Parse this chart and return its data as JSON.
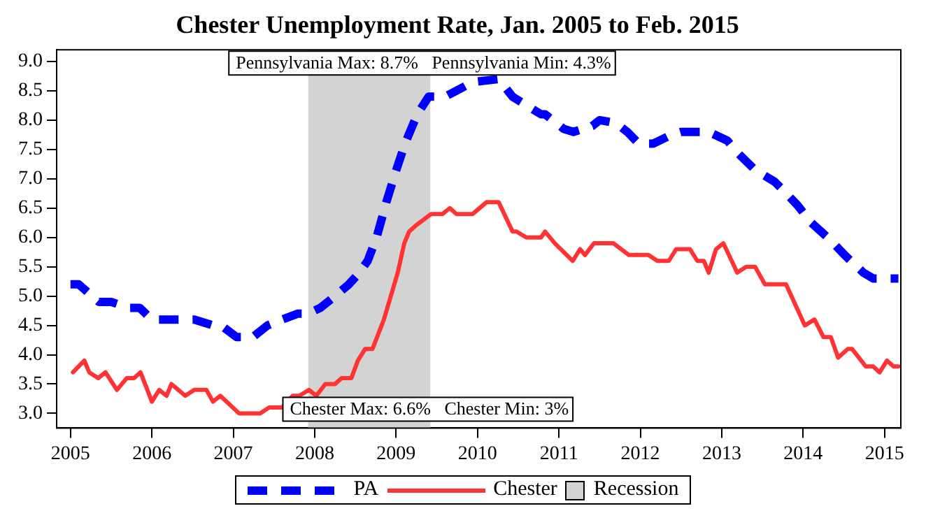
{
  "chart_data": {
    "type": "line",
    "title": "Chester Unemployment Rate, Jan. 2005 to Feb. 2015",
    "xlim": [
      2004.83,
      2015.2
    ],
    "xticks": [
      2005,
      2006,
      2007,
      2008,
      2009,
      2010,
      2011,
      2012,
      2013,
      2014,
      2015
    ],
    "ylim": [
      2.75,
      9.2
    ],
    "yticks": [
      {
        "value": 3,
        "label": "3.0"
      },
      {
        "value": 3.5,
        "label": "3.5"
      },
      {
        "value": 4,
        "label": "4.0"
      },
      {
        "value": 4.5,
        "label": "4.5"
      },
      {
        "value": 5,
        "label": "5.0"
      },
      {
        "value": 5.5,
        "label": "5.5"
      },
      {
        "value": 6,
        "label": "6.0"
      },
      {
        "value": 6.5,
        "label": "6.5"
      },
      {
        "value": 7,
        "label": "7.0"
      },
      {
        "value": 7.5,
        "label": "7.5"
      },
      {
        "value": 8,
        "label": "8.0"
      },
      {
        "value": 8.5,
        "label": "8.5"
      },
      {
        "value": 9,
        "label": "9.0"
      }
    ],
    "grid": false,
    "legend": "bottom",
    "marker": "none",
    "series": [
      {
        "name": "PA",
        "color": "#0000ff",
        "line_style": "dashed",
        "x": [
          2005.0,
          2005.1,
          2005.35,
          2005.5,
          2005.72,
          2005.85,
          2006.0,
          2006.25,
          2006.52,
          2006.75,
          2006.85,
          2007.04,
          2007.24,
          2007.42,
          2007.6,
          2007.79,
          2007.92,
          2008.07,
          2008.25,
          2008.42,
          2008.55,
          2008.65,
          2008.76,
          2008.88,
          2008.99,
          2009.11,
          2009.26,
          2009.4,
          2009.6,
          2009.74,
          2009.94,
          2010.26,
          2010.43,
          2010.78,
          2010.83,
          2011.06,
          2011.18,
          2011.41,
          2011.5,
          2011.7,
          2011.84,
          2011.98,
          2012.16,
          2012.38,
          2012.5,
          2012.84,
          2013.07,
          2013.19,
          2013.41,
          2013.65,
          2013.76,
          2013.93,
          2014.1,
          2014.34,
          2014.51,
          2014.74,
          2014.86,
          2015.17
        ],
        "values": [
          5.2,
          5.2,
          4.9,
          4.9,
          4.8,
          4.8,
          4.6,
          4.6,
          4.6,
          4.5,
          4.5,
          4.3,
          4.3,
          4.5,
          4.6,
          4.7,
          4.7,
          4.8,
          5.0,
          5.2,
          5.4,
          5.6,
          6.0,
          6.6,
          7.1,
          7.6,
          8.1,
          8.4,
          8.4,
          8.5,
          8.65,
          8.7,
          8.4,
          8.1,
          8.1,
          7.85,
          7.8,
          7.9,
          8.0,
          7.95,
          7.8,
          7.6,
          7.6,
          7.75,
          7.8,
          7.8,
          7.65,
          7.45,
          7.15,
          6.95,
          6.8,
          6.55,
          6.25,
          5.95,
          5.7,
          5.4,
          5.3,
          5.3
        ]
      },
      {
        "name": "Chester",
        "color": "#ff3333",
        "line_style": "solid",
        "x": [
          2005.03,
          2005.17,
          2005.23,
          2005.34,
          2005.43,
          2005.57,
          2005.69,
          2005.78,
          2005.86,
          2006.0,
          2006.09,
          2006.18,
          2006.24,
          2006.41,
          2006.52,
          2006.67,
          2006.75,
          2006.84,
          2007.07,
          2007.33,
          2007.44,
          2007.6,
          2007.73,
          2007.81,
          2007.93,
          2008.02,
          2008.13,
          2008.25,
          2008.33,
          2008.45,
          2008.53,
          2008.62,
          2008.71,
          2008.85,
          2009.02,
          2009.1,
          2009.16,
          2009.24,
          2009.43,
          2009.57,
          2009.66,
          2009.74,
          2009.94,
          2010.11,
          2010.26,
          2010.43,
          2010.48,
          2010.6,
          2010.78,
          2010.83,
          2010.95,
          2011.17,
          2011.26,
          2011.32,
          2011.43,
          2011.67,
          2011.86,
          2012.1,
          2012.21,
          2012.35,
          2012.44,
          2012.61,
          2012.7,
          2012.78,
          2012.84,
          2012.93,
          2013.02,
          2013.19,
          2013.3,
          2013.41,
          2013.53,
          2013.79,
          2014.02,
          2014.14,
          2014.25,
          2014.34,
          2014.43,
          2014.55,
          2014.6,
          2014.77,
          2014.86,
          2014.94,
          2015.03,
          2015.11,
          2015.17
        ],
        "values": [
          3.7,
          3.9,
          3.7,
          3.6,
          3.7,
          3.4,
          3.6,
          3.6,
          3.7,
          3.2,
          3.4,
          3.3,
          3.5,
          3.3,
          3.4,
          3.4,
          3.2,
          3.3,
          3.0,
          3.0,
          3.1,
          3.1,
          3.3,
          3.3,
          3.4,
          3.3,
          3.5,
          3.5,
          3.6,
          3.6,
          3.9,
          4.1,
          4.1,
          4.6,
          5.4,
          5.9,
          6.1,
          6.2,
          6.4,
          6.4,
          6.5,
          6.4,
          6.4,
          6.6,
          6.6,
          6.1,
          6.1,
          6.0,
          6.0,
          6.1,
          5.9,
          5.6,
          5.8,
          5.7,
          5.9,
          5.9,
          5.7,
          5.7,
          5.6,
          5.6,
          5.8,
          5.8,
          5.6,
          5.6,
          5.4,
          5.8,
          5.9,
          5.4,
          5.5,
          5.5,
          5.2,
          5.2,
          4.5,
          4.6,
          4.3,
          4.3,
          3.95,
          4.1,
          4.1,
          3.8,
          3.8,
          3.7,
          3.9,
          3.8,
          3.8
        ]
      }
    ],
    "bands": [
      {
        "axis": "x",
        "from": 2007.92,
        "to": 2009.42,
        "label": "Recession",
        "color": "#d3d3d3"
      }
    ],
    "annotations": [
      "Pennsylvania Max: 8.7%   Pennsylvania Min: 4.3%",
      "Chester Max: 6.6%   Chester Min: 3%"
    ]
  }
}
